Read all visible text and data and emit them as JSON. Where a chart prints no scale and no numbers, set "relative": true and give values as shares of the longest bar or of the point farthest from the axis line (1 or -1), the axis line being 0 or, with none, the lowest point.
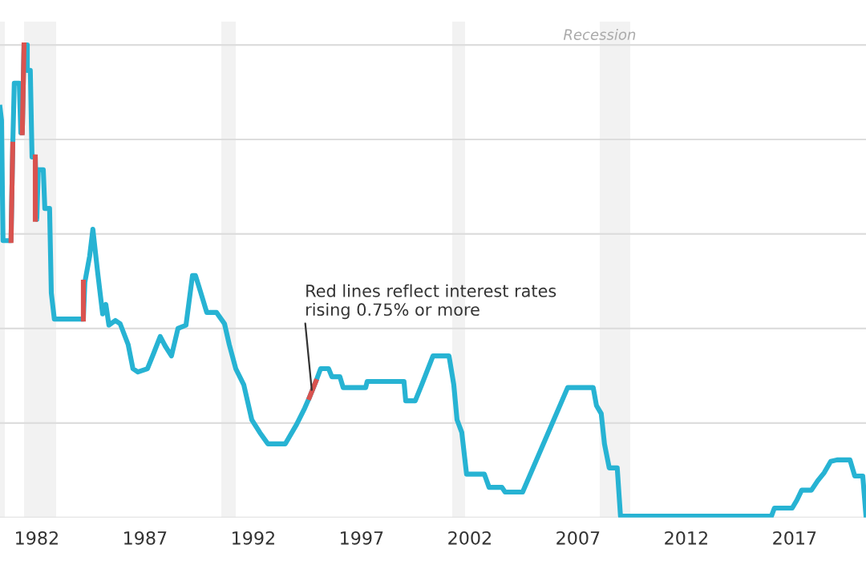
{
  "chart_data": {
    "type": "line",
    "relative": true,
    "xlim": [
      1980.3,
      2020.3
    ],
    "xticks": [
      1982,
      1987,
      1992,
      1997,
      2002,
      2007,
      2012,
      2017
    ],
    "grid": "y",
    "series": [
      {
        "color": "#27b3d3",
        "x": [
          1980.3,
          1980.37,
          1980.44,
          1980.81,
          1980.89,
          1980.96,
          1981.19,
          1981.26,
          1981.33,
          1981.41,
          1981.56,
          1981.56,
          1981.7,
          1981.78,
          1981.93,
          1982.0,
          1982.07,
          1982.3,
          1982.37,
          1982.59,
          1982.67,
          1982.81,
          1984.15,
          1984.22,
          1984.44,
          1984.59,
          1984.81,
          1985.04,
          1985.19,
          1985.33,
          1985.63,
          1985.85,
          1986.22,
          1986.44,
          1986.67,
          1987.11,
          1987.41,
          1987.7,
          1987.93,
          1988.22,
          1988.52,
          1988.89,
          1989.19,
          1989.33,
          1989.56,
          1989.85,
          1990.3,
          1990.67,
          1990.89,
          1991.19,
          1991.56,
          1991.93,
          1992.3,
          1992.67,
          1993.48,
          1994.0,
          1994.37,
          1994.59,
          1994.89,
          1995.11,
          1995.48,
          1995.63,
          1996.0,
          1996.15,
          1997.19,
          1997.26,
          1998.96,
          1999.04,
          1999.48,
          1999.78,
          2000.3,
          2001.04,
          2001.26,
          2001.41,
          2001.63,
          2001.85,
          2002.67,
          2002.89,
          2003.48,
          2003.63,
          2004.44,
          2006.52,
          2007.7,
          2007.85,
          2008.07,
          2008.22,
          2008.44,
          2008.81,
          2008.96,
          2015.93,
          2016.07,
          2016.89,
          2017.11,
          2017.33,
          2017.78,
          2018.07,
          2018.37,
          2018.67,
          2018.96,
          2019.56,
          2019.78,
          2020.15,
          2020.3
        ],
        "values": [
          0.868,
          0.841,
          0.586,
          0.586,
          0.79,
          0.919,
          0.919,
          0.814,
          0.814,
          1.0,
          1.0,
          0.946,
          0.946,
          0.763,
          0.763,
          0.631,
          0.736,
          0.736,
          0.654,
          0.654,
          0.475,
          0.42,
          0.42,
          0.498,
          0.553,
          0.61,
          0.519,
          0.431,
          0.451,
          0.407,
          0.417,
          0.41,
          0.366,
          0.315,
          0.308,
          0.315,
          0.349,
          0.383,
          0.363,
          0.342,
          0.4,
          0.407,
          0.512,
          0.512,
          0.478,
          0.434,
          0.434,
          0.41,
          0.366,
          0.315,
          0.281,
          0.207,
          0.18,
          0.156,
          0.156,
          0.197,
          0.231,
          0.254,
          0.288,
          0.315,
          0.315,
          0.298,
          0.298,
          0.275,
          0.275,
          0.288,
          0.288,
          0.247,
          0.247,
          0.281,
          0.342,
          0.342,
          0.281,
          0.207,
          0.18,
          0.092,
          0.092,
          0.064,
          0.064,
          0.054,
          0.054,
          0.275,
          0.275,
          0.237,
          0.22,
          0.156,
          0.105,
          0.105,
          0.003,
          0.003,
          0.02,
          0.02,
          0.037,
          0.058,
          0.058,
          0.078,
          0.095,
          0.119,
          0.122,
          0.122,
          0.088,
          0.088,
          0.003
        ]
      },
      {
        "color": "#d9534f",
        "x": [
          1980.81,
          1980.89,
          1981.0,
          1981.33,
          1981.41,
          1981.5,
          1981.93,
          1981.93,
          1982.0,
          1984.15,
          1984.15,
          1994.2,
          1994.59,
          1994.89
        ],
        "values": [
          0.586,
          0.79,
          null,
          0.814,
          1.0,
          null,
          0.763,
          0.631,
          null,
          0.42,
          0.498,
          null,
          0.254,
          0.288
        ]
      }
    ],
    "bands": [
      {
        "axis": "x",
        "from": 1980.3,
        "to": 1980.52,
        "color": "#f2f2f2"
      },
      {
        "axis": "x",
        "from": 1981.41,
        "to": 1982.89,
        "color": "#f2f2f2"
      },
      {
        "axis": "x",
        "from": 1990.52,
        "to": 1991.19,
        "color": "#f2f2f2"
      },
      {
        "axis": "x",
        "from": 2001.19,
        "to": 2001.78,
        "color": "#f2f2f2"
      },
      {
        "axis": "x",
        "from": 2008.0,
        "to": 2009.41,
        "color": "#f2f2f2",
        "label": "Recession"
      }
    ],
    "annotations": [
      {
        "text": "Red lines reflect interest rates\nrising 0.75% or more",
        "x": 1994.7,
        "y": 0.27
      }
    ]
  }
}
